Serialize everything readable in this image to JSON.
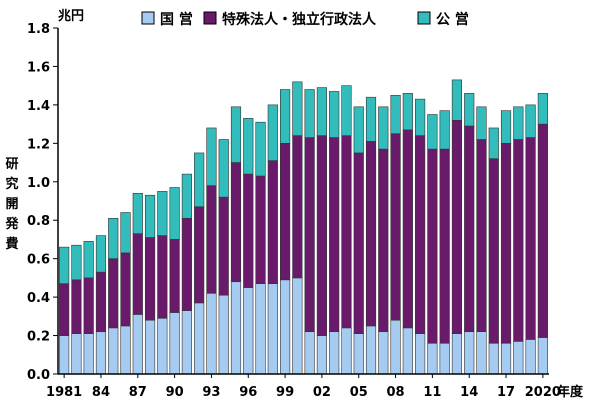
{
  "chart_data": {
    "type": "bar",
    "stacked": true,
    "unit": "兆円",
    "ylabel": "研究開発費",
    "xlabel_suffix": "年度",
    "ylim": [
      0,
      1.8
    ],
    "yticks": [
      "0.0",
      "0.2",
      "0.4",
      "0.6",
      "0.8",
      "1.0",
      "1.2",
      "1.4",
      "1.6",
      "1.8"
    ],
    "x_tick_labels": [
      {
        "year": 1981,
        "label": "1981"
      },
      {
        "year": 1984,
        "label": "84"
      },
      {
        "year": 1987,
        "label": "87"
      },
      {
        "year": 1990,
        "label": "90"
      },
      {
        "year": 1993,
        "label": "93"
      },
      {
        "year": 1996,
        "label": "96"
      },
      {
        "year": 1999,
        "label": "99"
      },
      {
        "year": 2002,
        "label": "02"
      },
      {
        "year": 2005,
        "label": "05"
      },
      {
        "year": 2008,
        "label": "08"
      },
      {
        "year": 2011,
        "label": "11"
      },
      {
        "year": 2014,
        "label": "14"
      },
      {
        "year": 2017,
        "label": "17"
      },
      {
        "year": 2020,
        "label": "2020"
      }
    ],
    "legend_placement": "top",
    "categories": [
      1981,
      1982,
      1983,
      1984,
      1985,
      1986,
      1987,
      1988,
      1989,
      1990,
      1991,
      1992,
      1993,
      1994,
      1995,
      1996,
      1997,
      1998,
      1999,
      2000,
      2001,
      2002,
      2003,
      2004,
      2005,
      2006,
      2007,
      2008,
      2009,
      2010,
      2011,
      2012,
      2013,
      2014,
      2015,
      2016,
      2017,
      2018,
      2019,
      2020
    ],
    "series": [
      {
        "name": "国 営",
        "color": "#a6cbf0",
        "values": [
          0.2,
          0.21,
          0.21,
          0.22,
          0.24,
          0.25,
          0.31,
          0.28,
          0.29,
          0.32,
          0.33,
          0.37,
          0.42,
          0.41,
          0.48,
          0.45,
          0.47,
          0.47,
          0.49,
          0.5,
          0.22,
          0.2,
          0.22,
          0.24,
          0.21,
          0.25,
          0.22,
          0.28,
          0.24,
          0.21,
          0.16,
          0.16,
          0.21,
          0.22,
          0.22,
          0.16,
          0.16,
          0.17,
          0.18,
          0.19
        ]
      },
      {
        "name": "特殊法人・独立行政法人",
        "color": "#6a1a6a",
        "values": [
          0.27,
          0.28,
          0.29,
          0.31,
          0.36,
          0.38,
          0.42,
          0.43,
          0.43,
          0.38,
          0.48,
          0.5,
          0.56,
          0.51,
          0.62,
          0.59,
          0.56,
          0.64,
          0.71,
          0.74,
          1.01,
          1.04,
          1.01,
          1.0,
          0.94,
          0.96,
          0.95,
          0.97,
          1.03,
          1.03,
          1.01,
          1.01,
          1.11,
          1.07,
          1.0,
          0.96,
          1.04,
          1.05,
          1.05,
          1.11
        ]
      },
      {
        "name": "公 営",
        "color": "#33bcbc",
        "values": [
          0.19,
          0.18,
          0.19,
          0.19,
          0.21,
          0.21,
          0.21,
          0.22,
          0.23,
          0.27,
          0.23,
          0.28,
          0.3,
          0.3,
          0.29,
          0.29,
          0.28,
          0.29,
          0.28,
          0.28,
          0.25,
          0.25,
          0.24,
          0.26,
          0.24,
          0.23,
          0.22,
          0.2,
          0.19,
          0.19,
          0.18,
          0.2,
          0.21,
          0.17,
          0.17,
          0.16,
          0.17,
          0.17,
          0.17,
          0.16
        ]
      }
    ]
  }
}
